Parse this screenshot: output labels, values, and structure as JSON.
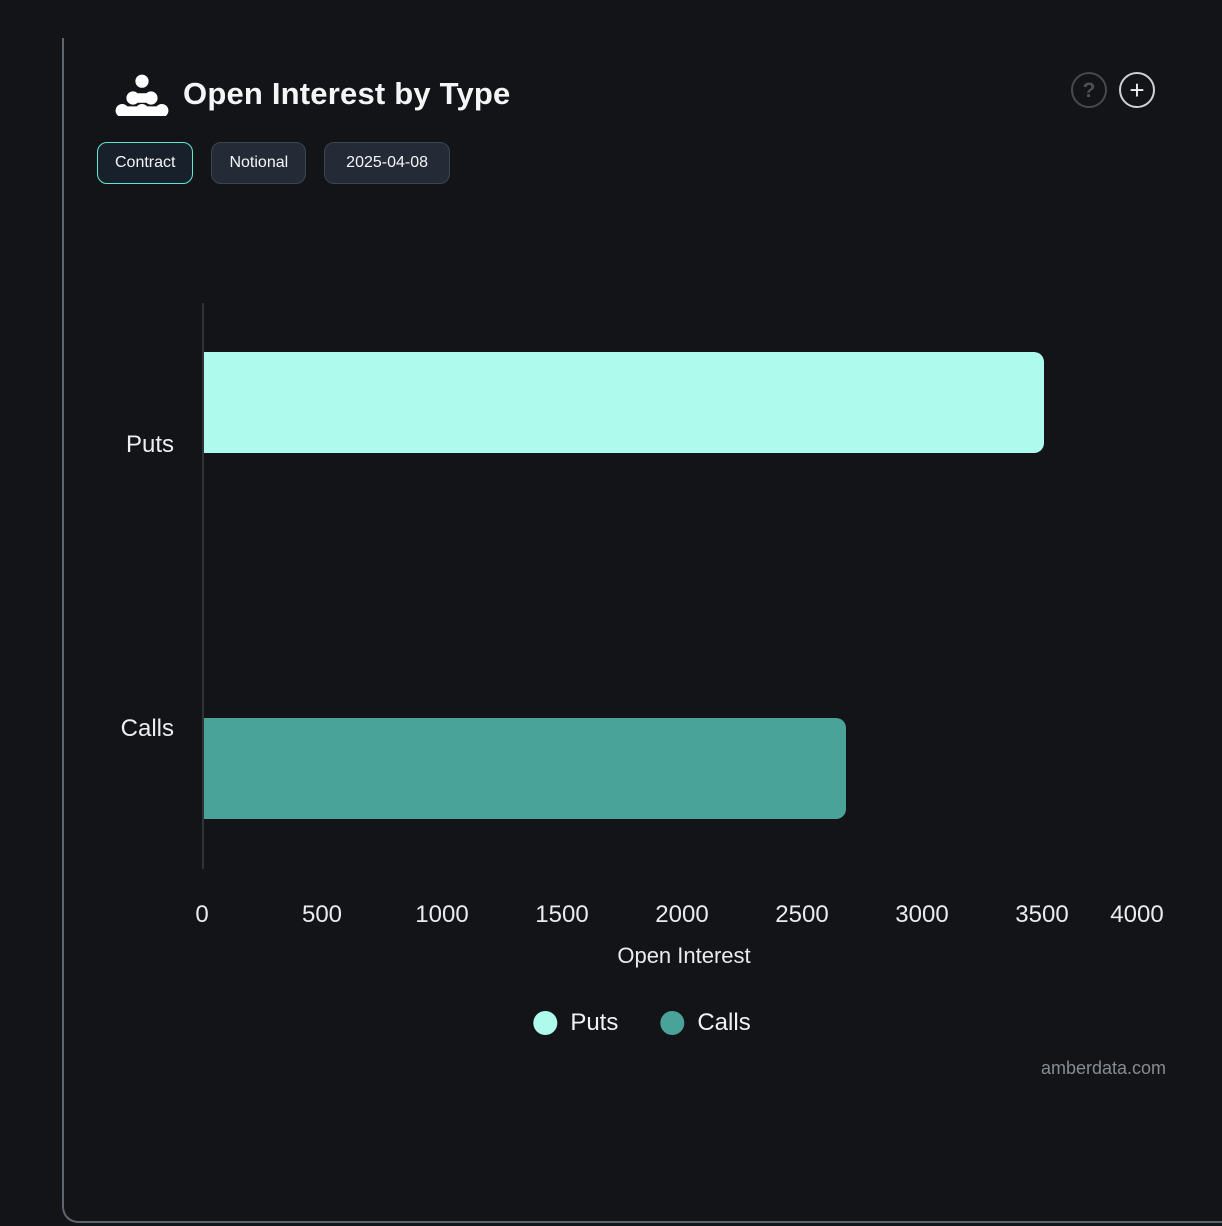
{
  "header": {
    "title": "Open Interest by Type",
    "help_label": "?",
    "add_label": "+"
  },
  "toolbar": {
    "buttons": [
      {
        "label": "Contract",
        "active": true
      },
      {
        "label": "Notional",
        "active": false
      },
      {
        "label": "2025-04-08",
        "active": false
      }
    ]
  },
  "chart_data": {
    "type": "bar",
    "orientation": "horizontal",
    "title": "Open Interest by Type",
    "categories": [
      "Puts",
      "Calls"
    ],
    "values": [
      3500,
      2675
    ],
    "bar_colors": [
      "#aefaec",
      "#4aa399"
    ],
    "xlabel": "Open Interest",
    "xlim": [
      0,
      4000
    ],
    "xticks": [
      0,
      500,
      1000,
      1500,
      2000,
      2500,
      3000,
      3500,
      4000
    ],
    "grid": false,
    "legend": {
      "position": "bottom",
      "entries": [
        {
          "label": "Puts",
          "color": "#aefaec"
        },
        {
          "label": "Calls",
          "color": "#4aa399"
        }
      ]
    }
  },
  "footer": {
    "watermark": "amberdata.com"
  },
  "colors": {
    "background": "#131417",
    "card_border": "#5d6570",
    "accent_teal": "#5fe8d0",
    "axis_line": "#303338",
    "text_primary": "#f2f3f5",
    "text_muted": "#878c92"
  }
}
